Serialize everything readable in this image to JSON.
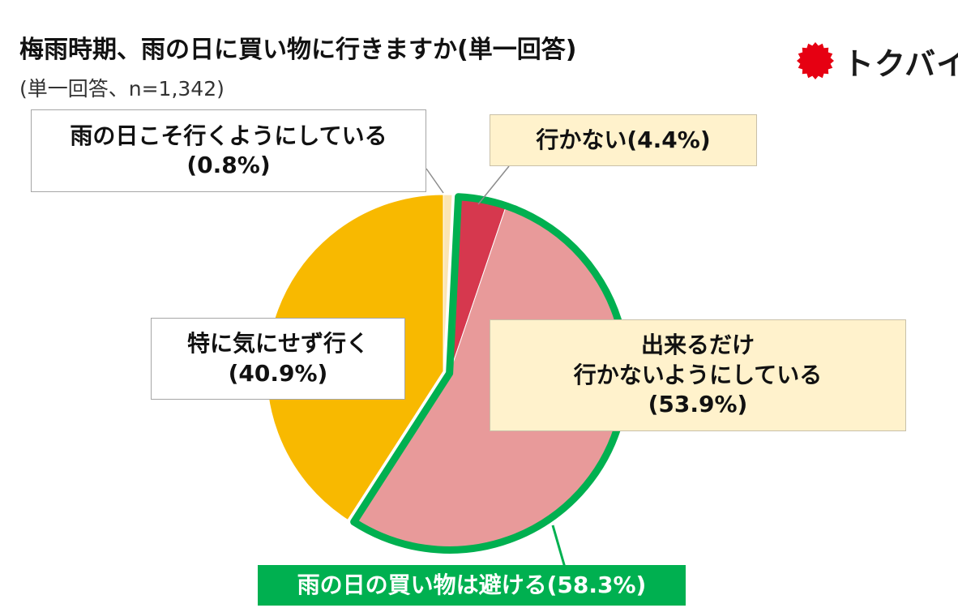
{
  "header": {
    "title": "梅雨時期、雨の日に買い物に行きますか(単一回答)",
    "subtitle": "(単一回答、n=1,342)"
  },
  "logo": {
    "text": "トクバイ",
    "icon": "red-sun-badge-icon",
    "color": "#e60012"
  },
  "chart_data": {
    "type": "pie",
    "title": "梅雨時期、雨の日に買い物に行きますか(単一回答)",
    "note": "(単一回答、n=1,342)",
    "slices": [
      {
        "label": "雨の日こそ行くようにしている",
        "value": 0.8,
        "color": "#fbe5b4",
        "label_lines": [
          "雨の日こそ行くようにしている",
          "(0.8%)"
        ]
      },
      {
        "label": "行かない",
        "value": 4.4,
        "color": "#d6384e",
        "label_lines": [
          "行かない(4.4%)"
        ]
      },
      {
        "label": "出来るだけ行かないようにしている",
        "value": 53.9,
        "color": "#e89a9a",
        "label_lines": [
          "出来るだけ",
          "行かないようにしている",
          "(53.9%)"
        ]
      },
      {
        "label": "特に気にせず行く",
        "value": 40.9,
        "color": "#f8b900",
        "label_lines": [
          "特に気にせず行く",
          "(40.9%)"
        ]
      }
    ],
    "group_highlight": {
      "label": "雨の日の買い物は避ける(58.3%)",
      "value": 58.3,
      "members": [
        "行かない",
        "出来るだけ行かないようにしている"
      ],
      "color": "#00b050"
    }
  }
}
